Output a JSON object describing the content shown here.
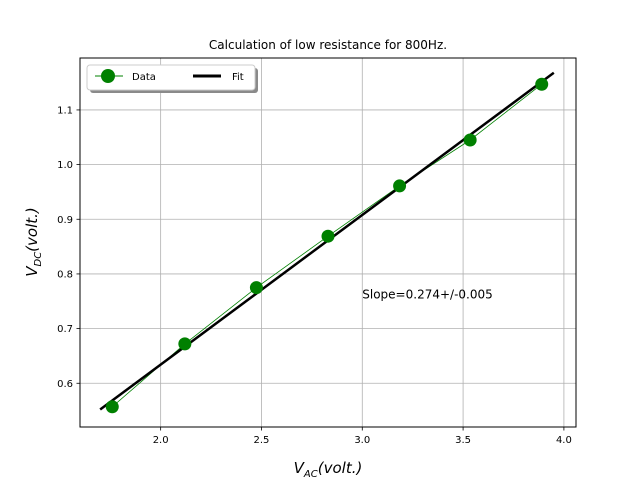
{
  "chart_data": {
    "type": "line",
    "title": "Calculation of low resistance for 800Hz.",
    "xlabel_main": "V",
    "xlabel_sub": "AC",
    "xlabel_rest": "(volt.)",
    "ylabel_main": "V",
    "ylabel_sub": "DC",
    "ylabel_rest": "(volt.)",
    "xlim": [
      1.6,
      4.06
    ],
    "ylim": [
      0.52,
      1.195
    ],
    "xticks": [
      2.0,
      2.5,
      3.0,
      3.5,
      4.0
    ],
    "xtick_labels": [
      "2.0",
      "2.5",
      "3.0",
      "3.5",
      "4.0"
    ],
    "yticks": [
      0.6,
      0.7,
      0.8,
      0.9,
      1.0,
      1.1
    ],
    "ytick_labels": [
      "0.6",
      "0.7",
      "0.8",
      "0.9",
      "1.0",
      "1.1"
    ],
    "grid": true,
    "legend_position": "top-left",
    "series": [
      {
        "name": "Data",
        "color": "#008000",
        "marker": "circle",
        "x": [
          1.76,
          2.12,
          2.475,
          2.83,
          3.185,
          3.535,
          3.89
        ],
        "y": [
          0.557,
          0.672,
          0.775,
          0.869,
          0.961,
          1.045,
          1.147
        ]
      },
      {
        "name": "Fit",
        "color": "#000000",
        "x": [
          1.7,
          3.95
        ],
        "y": [
          0.552,
          1.168
        ]
      }
    ],
    "annotation": {
      "text": "Slope=0.274+/-0.005",
      "x": 3.0,
      "y": 0.755
    }
  }
}
